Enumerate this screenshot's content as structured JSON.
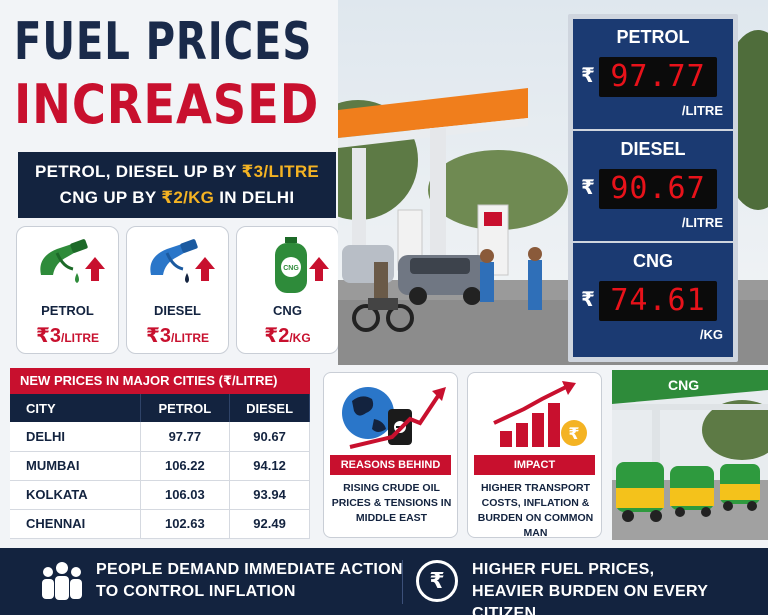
{
  "title": {
    "line1": "FUEL PRICES",
    "line2": "INCREASED"
  },
  "subtitle": {
    "line1_pre": "PETROL, DIESEL UP BY ",
    "line1_hl": "₹3/LITRE",
    "line2_pre": "CNG UP BY ",
    "line2_hl": "₹2/KG",
    "line2_post": " IN DELHI"
  },
  "cards": [
    {
      "name": "PETROL",
      "amount": "₹3",
      "unit": "/LITRE",
      "icon": "petrol-nozzle-icon",
      "color": "#2e8b3a"
    },
    {
      "name": "DIESEL",
      "amount": "₹3",
      "unit": "/LITRE",
      "icon": "diesel-nozzle-icon",
      "color": "#2a76c9"
    },
    {
      "name": "CNG",
      "amount": "₹2",
      "unit": "/KG",
      "icon": "cng-cylinder-icon",
      "color": "#2e8b3a",
      "cylinder_label": "CNG"
    }
  ],
  "board": {
    "currency": "₹",
    "items": [
      {
        "label": "PETROL",
        "price": "97.77",
        "unit": "/LITRE"
      },
      {
        "label": "DIESEL",
        "price": "90.67",
        "unit": "/LITRE"
      },
      {
        "label": "CNG",
        "price": "74.61",
        "unit": "/KG"
      }
    ]
  },
  "table": {
    "heading": "NEW PRICES IN MAJOR CITIES (₹/LITRE)",
    "columns": [
      "CITY",
      "PETROL",
      "DIESEL"
    ],
    "rows": [
      [
        "DELHI",
        "97.77",
        "90.67"
      ],
      [
        "MUMBAI",
        "106.22",
        "94.12"
      ],
      [
        "KOLKATA",
        "106.03",
        "93.94"
      ],
      [
        "CHENNAI",
        "102.63",
        "92.49"
      ]
    ]
  },
  "reasons": {
    "tag": "REASONS BEHIND HIKE",
    "text": "RISING CRUDE OIL PRICES & TENSIONS IN MIDDLE EAST"
  },
  "impact": {
    "tag": "IMPACT",
    "text": "HIGHER TRANSPORT COSTS, INFLATION & BURDEN ON COMMON MAN",
    "coin": "₹"
  },
  "cng_station_sign": "CNG",
  "footer": {
    "left_line1": "PEOPLE DEMAND IMMEDIATE ACTION",
    "left_line2": "TO CONTROL INFLATION",
    "right_icon": "₹",
    "right_line1": "HIGHER FUEL PRICES,",
    "right_line2": "HEAVIER BURDEN ON EVERY CITIZEN"
  },
  "colors": {
    "navy": "#13233f",
    "red": "#c8102e",
    "yellow": "#f4b323",
    "board_blue": "#1b3a72"
  }
}
